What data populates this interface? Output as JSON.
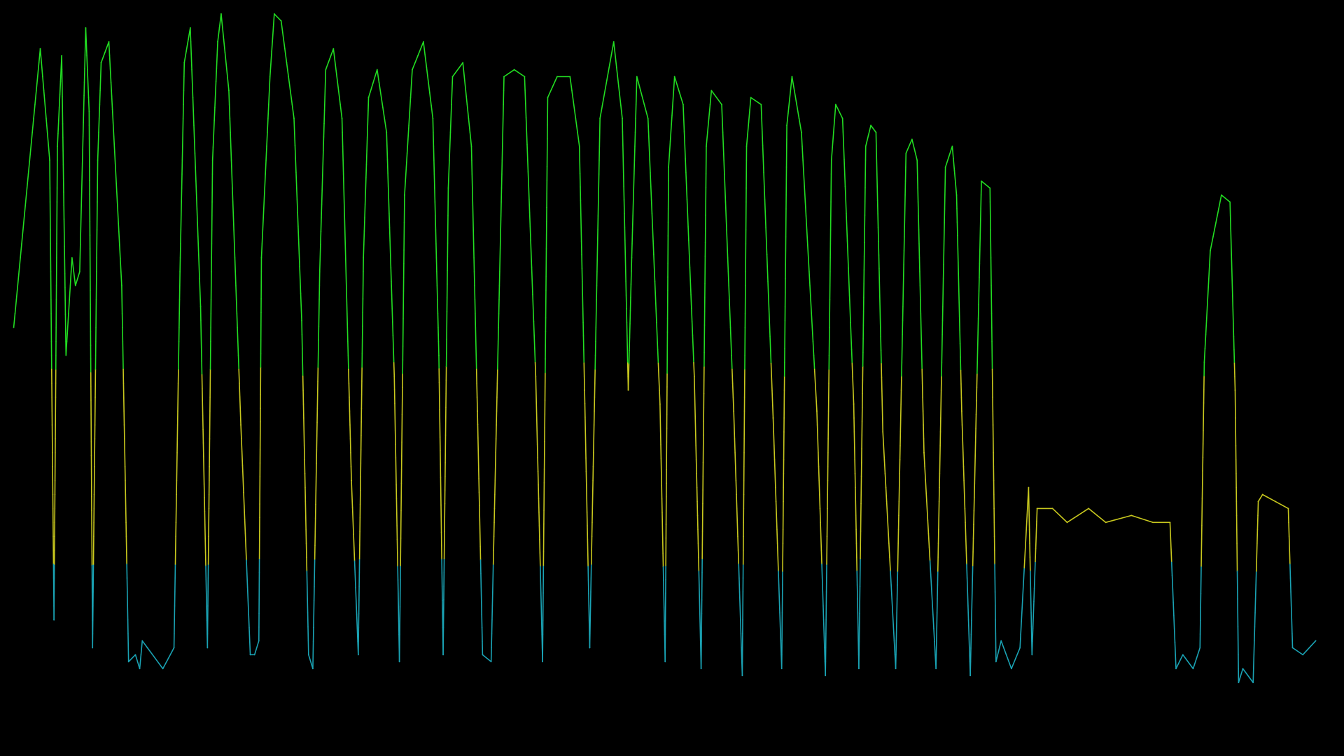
{
  "background": "#000000",
  "colors": {
    "high": "#22dd22",
    "mid": "#c8c81e",
    "low": "#1aa3b4"
  },
  "chart_data": {
    "type": "line",
    "title": "",
    "xlabel": "",
    "ylabel": "",
    "axes_visible": false,
    "grid": false,
    "legend": "none",
    "xlim": [
      0,
      1540
    ],
    "ylim": [
      0,
      100
    ],
    "color_bands": [
      {
        "min": 48,
        "max": 100,
        "color_key": "high"
      },
      {
        "min": 20,
        "max": 48,
        "color_key": "mid"
      },
      {
        "min": 0,
        "max": 20,
        "color_key": "low"
      }
    ],
    "series": [
      {
        "x": [
          16,
          47,
          58,
          63,
          67,
          72,
          77,
          84,
          88,
          93,
          100,
          104,
          108,
          114,
          118,
          127,
          142,
          150,
          158,
          163,
          166,
          172,
          190,
          203,
          210,
          215,
          222,
          234,
          242,
          248,
          254,
          258,
          267,
          281,
          292,
          297,
          302,
          305,
          315,
          320,
          328,
          343,
          352,
          360,
          365,
          373,
          380,
          389,
          399,
          410,
          418,
          424,
          430,
          440,
          451,
          460,
          466,
          472,
          481,
          494,
          505,
          512,
          517,
          523,
          528,
          540,
          550,
          557,
          563,
          573,
          588,
          600,
          612,
          625,
          633,
          639,
          650,
          665,
          676,
          682,
          688,
          700,
          716,
          726,
          733,
          737,
          743,
          756,
          770,
          776,
          780,
          787,
          797,
          810,
          818,
          824,
          830,
          842,
          856,
          866,
          871,
          876,
          888,
          902,
          912,
          918,
          924,
          935,
          953,
          963,
          970,
          975,
          983,
          996,
          1002,
          1010,
          1016,
          1022,
          1030,
          1045,
          1057,
          1064,
          1070,
          1078,
          1092,
          1103,
          1111,
          1116,
          1122,
          1132,
          1145,
          1155,
          1162,
          1168,
          1180,
          1190,
          1200,
          1204,
          1210,
          1228,
          1245,
          1270,
          1290,
          1320,
          1345,
          1365,
          1372,
          1380,
          1392,
          1400,
          1405,
          1412,
          1425,
          1435,
          1441,
          1445,
          1450,
          1462,
          1468,
          1473,
          1488,
          1503,
          1508,
          1520,
          1535
        ],
        "y": [
          54,
          94,
          78,
          12,
          80,
          93,
          50,
          64,
          60,
          62,
          97,
          85,
          8,
          78,
          92,
          95,
          60,
          6,
          7,
          5,
          9,
          8,
          5,
          8,
          62,
          92,
          97,
          57,
          8,
          78,
          95,
          99,
          88,
          40,
          7,
          7,
          9,
          64,
          90,
          99,
          98,
          84,
          55,
          7,
          5,
          62,
          91,
          94,
          84,
          32,
          7,
          64,
          87,
          91,
          82,
          47,
          6,
          73,
          91,
          95,
          84,
          50,
          7,
          74,
          90,
          92,
          80,
          42,
          7,
          6,
          90,
          91,
          90,
          47,
          6,
          87,
          90,
          90,
          80,
          45,
          8,
          84,
          95,
          84,
          45,
          64,
          90,
          84,
          43,
          6,
          77,
          90,
          86,
          47,
          5,
          80,
          88,
          86,
          42,
          4,
          80,
          87,
          86,
          41,
          5,
          83,
          90,
          82,
          42,
          4,
          78,
          86,
          84,
          43,
          5,
          80,
          83,
          82,
          39,
          5,
          79,
          81,
          78,
          36,
          5,
          77,
          80,
          73,
          42,
          4,
          75,
          74,
          6,
          9,
          5,
          8,
          31,
          7,
          28,
          28,
          26,
          28,
          26,
          27,
          26,
          26,
          5,
          7,
          5,
          8,
          49,
          65,
          73,
          72,
          45,
          3,
          5,
          3,
          29,
          30,
          29,
          28,
          8,
          7,
          9
        ]
      }
    ]
  }
}
